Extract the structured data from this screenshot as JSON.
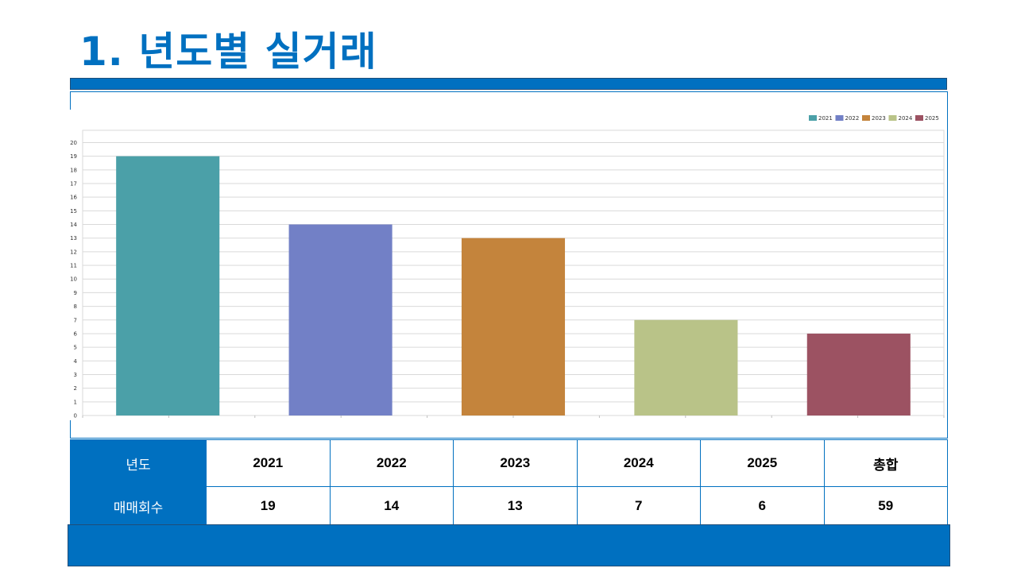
{
  "page": {
    "title": "1. 년도별 실거래",
    "accent": "#0070C0"
  },
  "chart_data": {
    "type": "bar",
    "categories": [
      "2021",
      "2022",
      "2023",
      "2024",
      "2025"
    ],
    "values": [
      19,
      14,
      13,
      7,
      6
    ],
    "colors": [
      "#4BA0A8",
      "#7280C6",
      "#C4843C",
      "#B9C388",
      "#9C5262"
    ],
    "legend": [
      "2021",
      "2022",
      "2023",
      "2024",
      "2025"
    ],
    "legend_position": "top-right",
    "ylim": [
      0,
      20
    ],
    "yticks": [
      "0",
      "1",
      "2",
      "3",
      "4",
      "5",
      "6",
      "7",
      "8",
      "9",
      "10",
      "11",
      "12",
      "13",
      "14",
      "15",
      "16",
      "17",
      "18",
      "19",
      "20"
    ],
    "grid": true,
    "title": "",
    "xlabel": "",
    "ylabel": ""
  },
  "table": {
    "row1_header": "년도",
    "row2_header": "매매회수",
    "columns": [
      "2021",
      "2022",
      "2023",
      "2024",
      "2025",
      "총합"
    ],
    "counts": [
      "19",
      "14",
      "13",
      "7",
      "6",
      "59"
    ]
  }
}
